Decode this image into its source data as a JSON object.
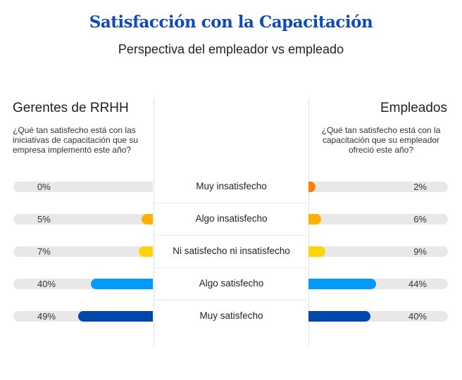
{
  "chart_data": {
    "type": "bar",
    "title": "Satisfacción con la Capacitación",
    "subtitle": "Perspectiva del empleador vs empleado",
    "categories": [
      "Muy insatisfecho",
      "Algo insatisfecho",
      "Ni satisfecho ni insatisfecho",
      "Algo satisfecho",
      "Muy satisfecho"
    ],
    "series": [
      {
        "name": "Gerentes de RRHH",
        "question": "¿Qué tan satisfecho está con las iniciativas de capacitación que su empresa implementó este año?",
        "values": [
          0,
          5,
          7,
          40,
          49
        ],
        "labels": [
          "0%",
          "5%",
          "7%",
          "40%",
          "49%"
        ]
      },
      {
        "name": "Empleados",
        "question": "¿Qué tan satisfecho está con la capacitación que su empleador ofreció este año?",
        "values": [
          2,
          6,
          9,
          44,
          40
        ],
        "labels": [
          "2%",
          "6%",
          "9%",
          "44%",
          "40%"
        ]
      }
    ],
    "colors": [
      "#ff7f00",
      "#ffb000",
      "#ffd400",
      "#0099ff",
      "#0047ab"
    ],
    "track_color": "#e8e8e8",
    "xlim": [
      0,
      100
    ]
  }
}
